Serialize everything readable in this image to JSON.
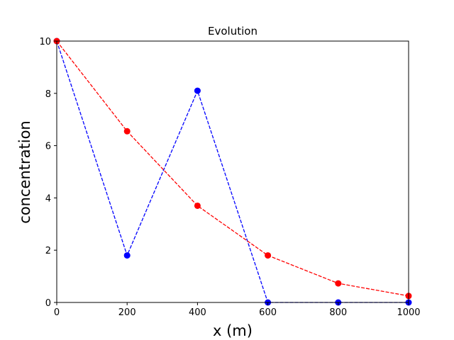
{
  "chart_data": {
    "type": "line",
    "title": "Evolution",
    "xlabel": "x (m)",
    "ylabel": "concentration",
    "xlim": [
      0,
      1000
    ],
    "ylim": [
      0,
      10
    ],
    "xticks": [
      0,
      200,
      400,
      600,
      800,
      1000
    ],
    "yticks": [
      0,
      2,
      4,
      6,
      8,
      10
    ],
    "grid": false,
    "x": [
      0,
      200,
      400,
      600,
      800,
      1000
    ],
    "series": [
      {
        "values": [
          10,
          1.8,
          8.1,
          0,
          0,
          0
        ],
        "color": "#0000ff",
        "line_style": "dashed",
        "marker": "circle"
      },
      {
        "values": [
          10,
          6.55,
          3.7,
          1.8,
          0.73,
          0.25
        ],
        "color": "#ff0000",
        "line_style": "dashed",
        "marker": "circle"
      }
    ]
  }
}
